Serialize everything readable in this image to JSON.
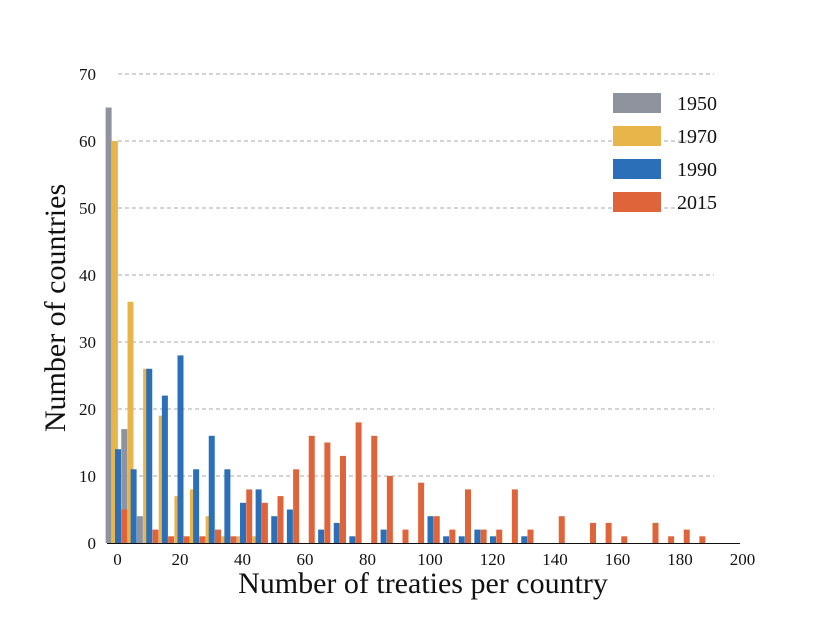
{
  "chart_data": {
    "type": "bar",
    "title": "",
    "xlabel": "Number of treaties per country",
    "ylabel": "Number of countries",
    "xlim": [
      -3,
      200
    ],
    "ylim": [
      0,
      70
    ],
    "x_ticks": [
      0,
      20,
      40,
      60,
      80,
      100,
      120,
      140,
      160,
      180,
      200
    ],
    "y_ticks": [
      0,
      10,
      20,
      30,
      40,
      50,
      60,
      70
    ],
    "grid": "horizontal dashed",
    "legend_position": "top-right",
    "bin_width": 5,
    "series": [
      {
        "name": "1950",
        "color": "#8e939e",
        "points": [
          [
            -3,
            65
          ],
          [
            2,
            17
          ],
          [
            7,
            4
          ]
        ]
      },
      {
        "name": "1970",
        "color": "#e8b54a",
        "points": [
          [
            -1,
            60
          ],
          [
            4,
            36
          ],
          [
            9,
            26
          ],
          [
            14,
            19
          ],
          [
            19,
            7
          ],
          [
            24,
            8
          ],
          [
            29,
            4
          ],
          [
            34,
            1
          ],
          [
            39,
            1
          ],
          [
            44,
            1
          ]
        ]
      },
      {
        "name": "1990",
        "color": "#2a6fb7",
        "points": [
          [
            0,
            14
          ],
          [
            5,
            11
          ],
          [
            10,
            26
          ],
          [
            15,
            22
          ],
          [
            20,
            28
          ],
          [
            25,
            11
          ],
          [
            30,
            16
          ],
          [
            35,
            11
          ],
          [
            40,
            6
          ],
          [
            45,
            8
          ],
          [
            50,
            4
          ],
          [
            55,
            5
          ],
          [
            65,
            2
          ],
          [
            70,
            3
          ],
          [
            75,
            1
          ],
          [
            85,
            2
          ],
          [
            100,
            4
          ],
          [
            105,
            1
          ],
          [
            110,
            1
          ],
          [
            115,
            2
          ],
          [
            120,
            1
          ],
          [
            130,
            1
          ]
        ]
      },
      {
        "name": "2015",
        "color": "#e0643a",
        "points": [
          [
            2,
            5
          ],
          [
            12,
            2
          ],
          [
            17,
            1
          ],
          [
            22,
            1
          ],
          [
            27,
            1
          ],
          [
            32,
            2
          ],
          [
            37,
            1
          ],
          [
            42,
            8
          ],
          [
            47,
            6
          ],
          [
            52,
            7
          ],
          [
            57,
            11
          ],
          [
            62,
            16
          ],
          [
            67,
            15
          ],
          [
            72,
            13
          ],
          [
            77,
            18
          ],
          [
            82,
            16
          ],
          [
            87,
            10
          ],
          [
            92,
            2
          ],
          [
            97,
            9
          ],
          [
            102,
            4
          ],
          [
            107,
            2
          ],
          [
            112,
            8
          ],
          [
            117,
            2
          ],
          [
            122,
            2
          ],
          [
            127,
            8
          ],
          [
            132,
            2
          ],
          [
            142,
            4
          ],
          [
            152,
            3
          ],
          [
            157,
            3
          ],
          [
            162,
            1
          ],
          [
            172,
            3
          ],
          [
            177,
            1
          ],
          [
            182,
            2
          ],
          [
            187,
            1
          ]
        ]
      }
    ]
  }
}
